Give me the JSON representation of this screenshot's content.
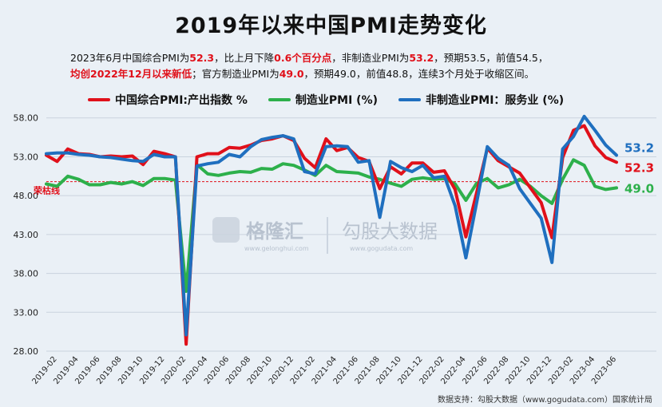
{
  "title": "2019年以来中国PMI走势变化",
  "subtitle": {
    "line1": [
      {
        "t": "2023年6月中国综合PMI为",
        "hl": false
      },
      {
        "t": "52.3",
        "hl": true
      },
      {
        "t": "，比上月下降",
        "hl": false
      },
      {
        "t": "0.6个百分点",
        "hl": true
      },
      {
        "t": "，非制造业PMI为",
        "hl": false
      },
      {
        "t": "53.2",
        "hl": true
      },
      {
        "t": "，预期53.5，前值54.5，",
        "hl": false
      }
    ],
    "line2": [
      {
        "t": "均创2022年12月以来新低",
        "hl": true
      },
      {
        "t": "；官方制造业PMI为",
        "hl": false
      },
      {
        "t": "49.0",
        "hl": true
      },
      {
        "t": "，预期49.0，前值48.8，连续3个月处于收缩区间。",
        "hl": false
      }
    ]
  },
  "watermark": {
    "brand1": "格隆汇",
    "brand1_url": "www.gelonghui.com",
    "brand2": "勾股大数据",
    "brand2_url": "www.gogudata.com"
  },
  "source": "数据支持：勾股大数据（www.gogudata.com）国家统计局",
  "colors": {
    "composite": "#e0101a",
    "manufacturing": "#2db04b",
    "services": "#1f6fbf",
    "threshold": "#e0101a"
  },
  "chart_data": {
    "type": "line",
    "ylim": [
      28,
      59
    ],
    "y_ticks": [
      "28.00",
      "33.00",
      "38.00",
      "43.00",
      "48.00",
      "53.00",
      "58.00"
    ],
    "x": [
      "2019-01",
      "2019-02",
      "2019-03",
      "2019-04",
      "2019-05",
      "2019-06",
      "2019-07",
      "2019-08",
      "2019-09",
      "2019-10",
      "2019-11",
      "2019-12",
      "2020-01",
      "2020-02",
      "2020-03",
      "2020-04",
      "2020-05",
      "2020-06",
      "2020-07",
      "2020-08",
      "2020-09",
      "2020-10",
      "2020-11",
      "2020-12",
      "2021-01",
      "2021-02",
      "2021-03",
      "2021-04",
      "2021-05",
      "2021-06",
      "2021-07",
      "2021-08",
      "2021-09",
      "2021-10",
      "2021-11",
      "2021-12",
      "2022-01",
      "2022-02",
      "2022-03",
      "2022-04",
      "2022-05",
      "2022-06",
      "2022-07",
      "2022-08",
      "2022-09",
      "2022-10",
      "2022-11",
      "2022-12",
      "2023-01",
      "2023-02",
      "2023-03",
      "2023-04",
      "2023-05",
      "2023-06"
    ],
    "x_tick_labels": [
      "2019-02",
      "2019-04",
      "2019-06",
      "2019-08",
      "2019-10",
      "2019-12",
      "2020-02",
      "2020-04",
      "2020-06",
      "2020-08",
      "2020-10",
      "2020-12",
      "2021-02",
      "2021-04",
      "2021-06",
      "2021-08",
      "2021-10",
      "2021-12",
      "2022-02",
      "2022-04",
      "2022-06",
      "2022-08",
      "2022-10",
      "2022-12",
      "2023-02",
      "2023-04",
      "2023-06"
    ],
    "threshold": {
      "value": 49.8,
      "label": "荣枯线"
    },
    "series": [
      {
        "name": "中国综合PMI:产出指数 %",
        "key": "composite",
        "values": [
          53.2,
          52.4,
          54.0,
          53.4,
          53.3,
          53.0,
          53.1,
          53.0,
          53.1,
          52.0,
          53.7,
          53.4,
          53.0,
          28.9,
          53.0,
          53.4,
          53.4,
          54.2,
          54.1,
          54.5,
          55.1,
          55.3,
          55.7,
          55.1,
          52.8,
          51.6,
          55.3,
          53.8,
          54.2,
          52.9,
          52.4,
          48.9,
          51.7,
          50.8,
          52.2,
          52.2,
          51.0,
          51.2,
          48.8,
          42.7,
          48.4,
          54.1,
          52.5,
          51.7,
          50.9,
          49.0,
          47.1,
          42.6,
          52.9,
          56.4,
          57.0,
          54.4,
          52.9,
          52.3
        ]
      },
      {
        "name": "制造业PMI (%)",
        "key": "manufacturing",
        "values": [
          49.5,
          49.2,
          50.5,
          50.1,
          49.4,
          49.4,
          49.7,
          49.5,
          49.8,
          49.3,
          50.2,
          50.2,
          50.0,
          35.7,
          52.0,
          50.8,
          50.6,
          50.9,
          51.1,
          51.0,
          51.5,
          51.4,
          52.1,
          51.9,
          51.3,
          50.6,
          51.9,
          51.1,
          51.0,
          50.9,
          50.4,
          50.1,
          49.6,
          49.2,
          50.1,
          50.3,
          50.1,
          50.2,
          49.5,
          47.4,
          49.6,
          50.2,
          49.0,
          49.4,
          50.1,
          49.2,
          48.0,
          47.0,
          50.1,
          52.6,
          51.9,
          49.2,
          48.8,
          49.0
        ]
      },
      {
        "name": "非制造业PMI：服务业 (%)",
        "key": "services",
        "values": [
          53.4,
          53.5,
          53.5,
          53.3,
          53.2,
          53.0,
          52.9,
          52.7,
          52.5,
          52.4,
          53.3,
          53.0,
          53.0,
          30.1,
          51.8,
          52.1,
          52.3,
          53.3,
          53.0,
          54.3,
          55.2,
          55.5,
          55.7,
          55.3,
          51.1,
          50.8,
          54.3,
          54.4,
          54.3,
          52.3,
          52.5,
          45.2,
          52.4,
          51.6,
          51.1,
          51.9,
          50.3,
          50.5,
          46.7,
          40.0,
          47.1,
          54.3,
          52.8,
          51.9,
          48.9,
          47.0,
          45.1,
          39.4,
          54.0,
          55.6,
          58.2,
          56.4,
          54.5,
          53.2
        ]
      }
    ],
    "end_labels": [
      {
        "key": "services",
        "text": "53.2"
      },
      {
        "key": "composite",
        "text": "52.3"
      },
      {
        "key": "manufacturing",
        "text": "49.0"
      }
    ]
  }
}
